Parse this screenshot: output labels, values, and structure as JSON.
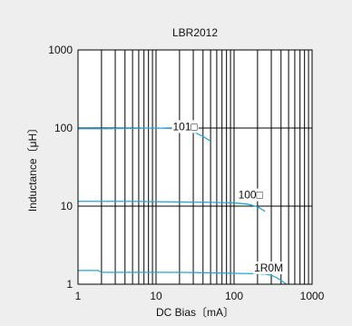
{
  "chart_data": {
    "type": "line",
    "title": "LBR2012",
    "xlabel": "DC Bias〔mA〕",
    "ylabel": "Inductance〔μH〕",
    "xscale": "log",
    "yscale": "log",
    "xlim": [
      1,
      1000
    ],
    "ylim": [
      1,
      1000
    ],
    "grid": true,
    "xticks": [
      "1",
      "10",
      "100",
      "1000"
    ],
    "yticks": [
      "1",
      "10",
      "100",
      "1000"
    ],
    "series": [
      {
        "name": "101□",
        "x": [
          1,
          2,
          5,
          10,
          15,
          20,
          30,
          40,
          50
        ],
        "y": [
          98,
          98,
          99,
          100,
          99,
          96,
          90,
          78,
          68
        ]
      },
      {
        "name": "100□",
        "x": [
          1,
          2,
          5,
          10,
          20,
          50,
          100,
          150,
          200,
          250
        ],
        "y": [
          11.5,
          11.5,
          11.5,
          11.4,
          11.3,
          11.2,
          11.0,
          10.6,
          9.8,
          8.6
        ]
      },
      {
        "name": "1R0M",
        "x": [
          1,
          1.8,
          2,
          5,
          10,
          20,
          50,
          100,
          200,
          250,
          300,
          350,
          400,
          450,
          500
        ],
        "y": [
          1.5,
          1.5,
          1.42,
          1.42,
          1.42,
          1.42,
          1.4,
          1.38,
          1.36,
          1.35,
          1.3,
          1.22,
          1.12,
          1.03,
          0.95
        ]
      }
    ],
    "colors": {
      "background": "#eeeeee",
      "plot_background": "#ffffff",
      "line": "#29a3d6",
      "grid": "#000000"
    }
  }
}
